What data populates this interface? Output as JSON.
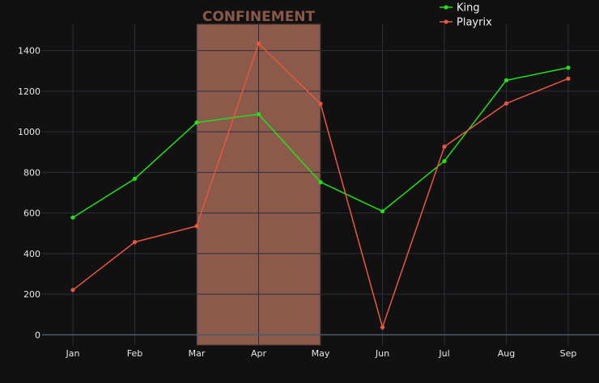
{
  "chart_data": {
    "type": "line",
    "title": "",
    "xlabel": "",
    "ylabel": "",
    "categories": [
      "Jan",
      "Feb",
      "Mar",
      "Apr",
      "May",
      "Jun",
      "Jul",
      "Aug",
      "Sep"
    ],
    "ylim": [
      -50,
      1530
    ],
    "yticks": [
      0,
      200,
      400,
      600,
      800,
      1000,
      1200,
      1400
    ],
    "grid": true,
    "legend_position": "top-right",
    "background": "#111111",
    "grid_color": "#2a2f3a",
    "series": [
      {
        "name": "King",
        "color": "#22e01a",
        "values": [
          578,
          769,
          1046,
          1087,
          752,
          609,
          856,
          1254,
          1316
        ]
      },
      {
        "name": "Playrix",
        "color": "#e8573f",
        "values": [
          221,
          457,
          536,
          1435,
          1138,
          37,
          927,
          1140,
          1262
        ]
      }
    ],
    "annotations": [
      {
        "type": "shaded-region",
        "label": "CONFINEMENT",
        "x_start": "Mar",
        "x_end": "May",
        "fill": "#8b5a4a",
        "label_color": "#8a5848"
      }
    ]
  }
}
